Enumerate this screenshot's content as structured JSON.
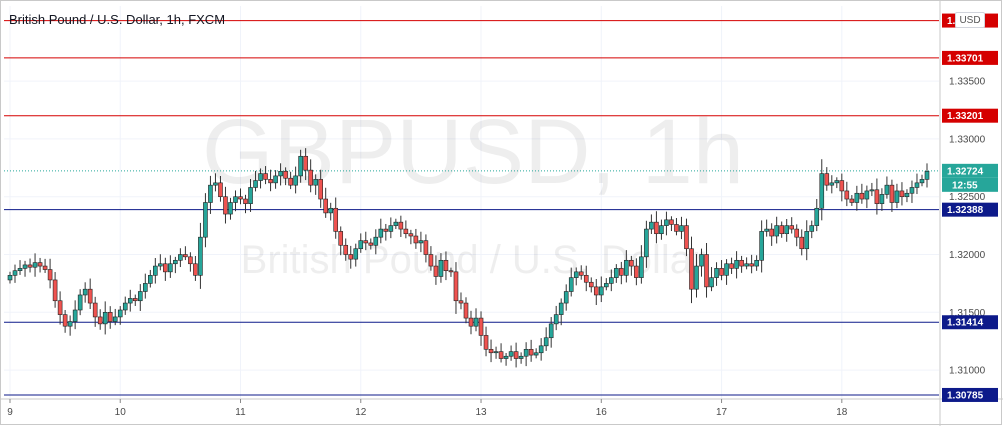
{
  "header": {
    "title": "British Pound / U.S. Dollar, 1h, FXCM",
    "currency_button": "USD"
  },
  "watermark": {
    "symbol": "GBPUSD, 1h",
    "name": "British Pound / U.S. Dollar"
  },
  "colors": {
    "up": "#26a69a",
    "down": "#ef5350",
    "wick": "#333333",
    "resistance": "#d50000",
    "support": "#0d1a8a",
    "last_price": "#26a69a",
    "grid": "#f0f3fa"
  },
  "chart_data": {
    "type": "candlestick",
    "title": "British Pound / U.S. Dollar, 1h, FXCM",
    "ylim": [
      1.3075,
      1.3415
    ],
    "y_ticks": [
      "1.31000",
      "1.31500",
      "1.32000",
      "1.32500",
      "1.33000",
      "1.33500"
    ],
    "x_ticks": [
      "9",
      "10",
      "11",
      "12",
      "13",
      "16",
      "17",
      "18"
    ],
    "horizontal_lines": [
      {
        "price": 1.34024,
        "label": "1.34024",
        "kind": "resistance"
      },
      {
        "price": 1.33701,
        "label": "1.33701",
        "kind": "resistance"
      },
      {
        "price": 1.33201,
        "label": "1.33201",
        "kind": "resistance"
      },
      {
        "price": 1.32388,
        "label": "1.32388",
        "kind": "support"
      },
      {
        "price": 1.31414,
        "label": "1.31414",
        "kind": "support"
      },
      {
        "price": 1.30785,
        "label": "1.30785",
        "kind": "support"
      }
    ],
    "last_price": {
      "price": 1.32724,
      "label": "1.32724",
      "countdown": "12:55"
    },
    "grid": true,
    "series": [
      {
        "day": "9",
        "closes": [
          1.3182,
          1.3186,
          1.3188,
          1.3191,
          1.3189,
          1.3193,
          1.319,
          1.3187,
          1.3178,
          1.316,
          1.3148,
          1.3138,
          1.3142,
          1.3152,
          1.3165,
          1.317,
          1.3158,
          1.3146,
          1.314,
          1.315,
          1.3142,
          1.3146
        ]
      },
      {
        "day": "10",
        "closes": [
          1.3152,
          1.3158,
          1.3162,
          1.316,
          1.3168,
          1.3175,
          1.3182,
          1.319,
          1.3192,
          1.3185,
          1.3192,
          1.3195,
          1.32,
          1.3198,
          1.3192,
          1.3182,
          1.3215,
          1.3245,
          1.326,
          1.3262,
          1.325,
          1.3235,
          1.3245,
          1.325
        ]
      },
      {
        "day": "11",
        "closes": [
          1.3248,
          1.3244,
          1.3258,
          1.3264,
          1.327,
          1.3265,
          1.3262,
          1.3268,
          1.3272,
          1.3266,
          1.326,
          1.3268,
          1.3285,
          1.3273,
          1.326,
          1.3265,
          1.3248,
          1.3236,
          1.324,
          1.322,
          1.3208,
          1.32,
          1.3196,
          1.3205
        ]
      },
      {
        "day": "12",
        "closes": [
          1.3212,
          1.321,
          1.3208,
          1.3215,
          1.3222,
          1.322,
          1.3225,
          1.3228,
          1.3222,
          1.3218,
          1.3216,
          1.321,
          1.3212,
          1.32,
          1.319,
          1.3181,
          1.3195,
          1.3186,
          1.3185,
          1.316,
          1.3158,
          1.3145,
          1.3138,
          1.3145
        ]
      },
      {
        "day": "13",
        "closes": [
          1.313,
          1.3118,
          1.3115,
          1.3116,
          1.311,
          1.3112,
          1.3116,
          1.311,
          1.3112,
          1.3118,
          1.3113,
          1.3115,
          1.3121,
          1.3128,
          1.314,
          1.3148,
          1.3158,
          1.3168,
          1.318,
          1.3185,
          1.3182,
          1.3176,
          1.3172,
          1.3165
        ]
      },
      {
        "day": "16",
        "closes": [
          1.3172,
          1.3175,
          1.318,
          1.3188,
          1.3182,
          1.3195,
          1.319,
          1.318,
          1.3198,
          1.3222,
          1.3228,
          1.3218,
          1.3225,
          1.323,
          1.3226,
          1.322,
          1.3225,
          1.3205,
          1.317,
          1.319,
          1.32,
          1.3172,
          1.318,
          1.3188
        ]
      },
      {
        "day": "17",
        "closes": [
          1.3182,
          1.3192,
          1.3188,
          1.3195,
          1.319,
          1.3192,
          1.319,
          1.3195,
          1.322,
          1.3222,
          1.3216,
          1.3225,
          1.3218,
          1.3225,
          1.3222,
          1.3215,
          1.3205,
          1.322,
          1.3225,
          1.324,
          1.327,
          1.326,
          1.3262,
          1.3264
        ]
      },
      {
        "day": "18",
        "closes": [
          1.3255,
          1.3248,
          1.3245,
          1.3253,
          1.3248,
          1.3255,
          1.3256,
          1.3244,
          1.3252,
          1.326,
          1.3245,
          1.3255,
          1.325,
          1.3253,
          1.3258,
          1.3262,
          1.3265,
          1.3272
        ]
      }
    ]
  }
}
